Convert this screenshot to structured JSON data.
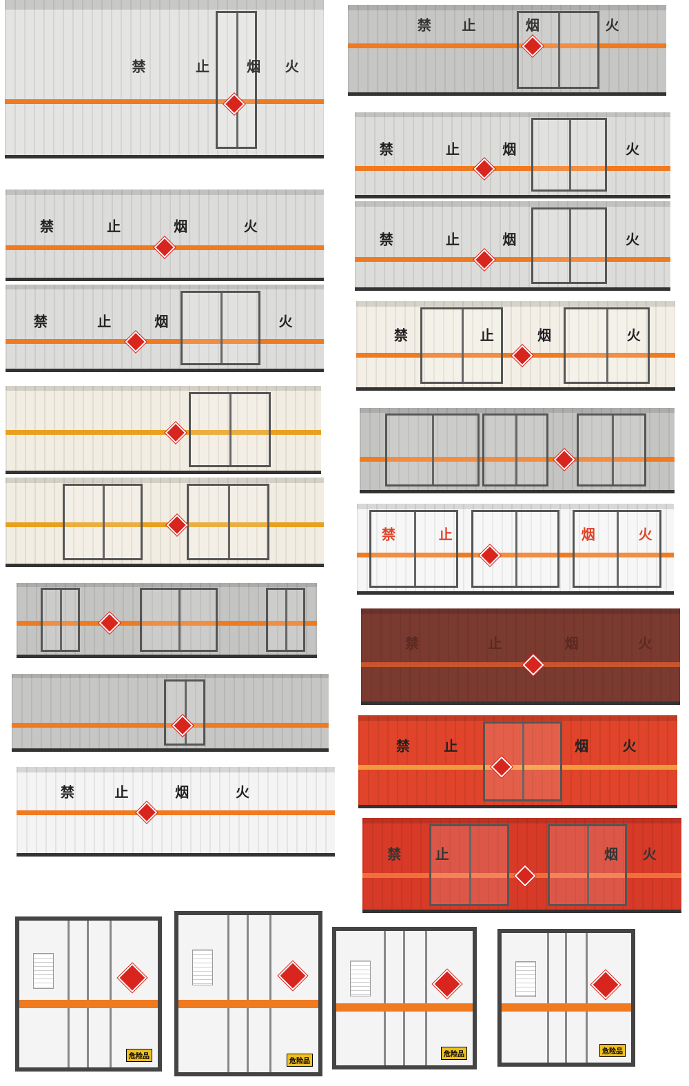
{
  "slogan": [
    "禁",
    "止",
    "烟",
    "火"
  ],
  "hazard_plate_label": "危险品",
  "colors": {
    "hazard_red": "#d8261e",
    "reflective_orange": "#f07a20",
    "reflective_yellow": "#e8a020",
    "box_grey": "#c9c9c7",
    "box_white": "#f2f0ec",
    "box_red": "#e0442a",
    "box_brown": "#7a3a30"
  },
  "icons": [
    "flammable-hazard-diamond-icon"
  ]
}
